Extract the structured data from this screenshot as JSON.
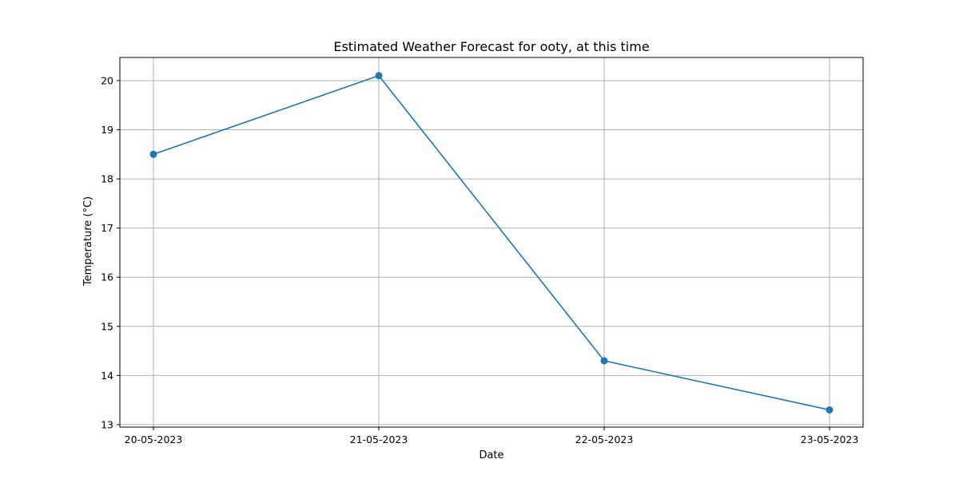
{
  "chart_data": {
    "type": "line",
    "title": "Estimated Weather Forecast for ooty, at this time",
    "xlabel": "Date",
    "ylabel": "Temperature (°C)",
    "categories": [
      "20-05-2023",
      "21-05-2023",
      "22-05-2023",
      "23-05-2023"
    ],
    "series": [
      {
        "values": [
          18.5,
          20.1,
          14.3,
          13.3
        ],
        "color": "#1f77b4",
        "marker": "circle"
      }
    ],
    "ylim": [
      12.95,
      20.47
    ],
    "yticks": [
      13,
      14,
      15,
      16,
      17,
      18,
      19,
      20
    ],
    "grid": true,
    "legend": "none"
  }
}
